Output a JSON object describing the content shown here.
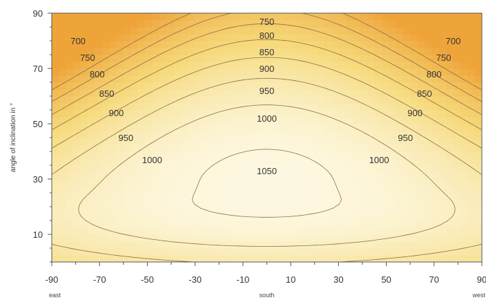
{
  "chart_data": {
    "type": "heatmap",
    "title": "",
    "xlabel": "",
    "ylabel": "angle of inclination in °",
    "xlim": [
      -90,
      90
    ],
    "ylim": [
      0,
      90
    ],
    "x_ticks": [
      "-90",
      "-70",
      "-50",
      "-30",
      "-10",
      "10",
      "30",
      "50",
      "70",
      "90"
    ],
    "x_tick_values": [
      -90,
      -70,
      -50,
      -30,
      -10,
      10,
      30,
      50,
      70,
      90
    ],
    "y_ticks": [
      "10",
      "30",
      "50",
      "70",
      "90"
    ],
    "y_tick_values": [
      10,
      30,
      50,
      70,
      90
    ],
    "direction_labels": [
      {
        "text": "east",
        "x": -90
      },
      {
        "text": "south",
        "x": 0
      },
      {
        "text": "west",
        "x": 90
      }
    ],
    "grid": false,
    "colors": {
      "low": "#efa43a",
      "mid": "#f6da7c",
      "high": "#fdf8e2"
    },
    "contour_levels": [
      700,
      750,
      800,
      850,
      900,
      950,
      1000,
      1050
    ],
    "contour_labels": [
      {
        "text": "750",
        "x": 0,
        "y": 87
      },
      {
        "text": "800",
        "x": 0,
        "y": 82
      },
      {
        "text": "850",
        "x": 0,
        "y": 76
      },
      {
        "text": "900",
        "x": 0,
        "y": 70
      },
      {
        "text": "950",
        "x": 0,
        "y": 62
      },
      {
        "text": "1000",
        "x": 0,
        "y": 52
      },
      {
        "text": "1050",
        "x": 0,
        "y": 33
      },
      {
        "text": "700",
        "x": -79,
        "y": 80
      },
      {
        "text": "750",
        "x": -75,
        "y": 74
      },
      {
        "text": "800",
        "x": -71,
        "y": 68
      },
      {
        "text": "850",
        "x": -67,
        "y": 61
      },
      {
        "text": "900",
        "x": -63,
        "y": 54
      },
      {
        "text": "950",
        "x": -59,
        "y": 45
      },
      {
        "text": "1000",
        "x": -48,
        "y": 37
      },
      {
        "text": "700",
        "x": 78,
        "y": 80
      },
      {
        "text": "750",
        "x": 74,
        "y": 74
      },
      {
        "text": "800",
        "x": 70,
        "y": 68
      },
      {
        "text": "850",
        "x": 66,
        "y": 61
      },
      {
        "text": "900",
        "x": 62,
        "y": 54
      },
      {
        "text": "950",
        "x": 58,
        "y": 45
      },
      {
        "text": "1000",
        "x": 47,
        "y": 37
      }
    ]
  }
}
